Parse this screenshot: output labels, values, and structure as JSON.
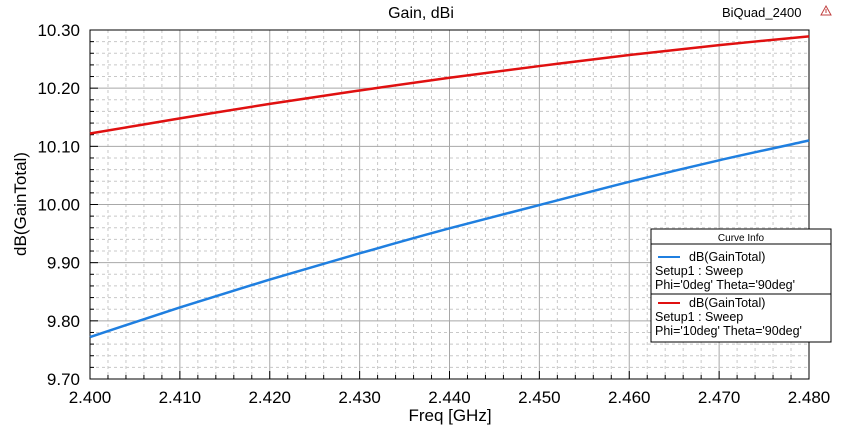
{
  "chart_data": {
    "type": "line",
    "title": "Gain, dBi",
    "project_tag": "BiQuad_2400",
    "xlabel": "Freq [GHz]",
    "ylabel": "dB(GainTotal)",
    "xlim": [
      2.4,
      2.48
    ],
    "ylim": [
      9.7,
      10.3
    ],
    "x_ticks": [
      "2.400",
      "2.410",
      "2.420",
      "2.430",
      "2.440",
      "2.450",
      "2.460",
      "2.470",
      "2.480"
    ],
    "y_ticks": [
      "9.70",
      "9.80",
      "9.90",
      "10.00",
      "10.10",
      "10.20",
      "10.30"
    ],
    "grid": true,
    "legend": {
      "title": "Curve Info",
      "placement": "right",
      "entries": [
        {
          "name": "dB(GainTotal)",
          "line2": "Setup1 : Sweep",
          "line3": "Phi='0deg' Theta='90deg'"
        },
        {
          "name": "dB(GainTotal)",
          "line2": "Setup1 : Sweep",
          "line3": "Phi='10deg' Theta='90deg'"
        }
      ]
    },
    "x": [
      2.4,
      2.41,
      2.42,
      2.43,
      2.44,
      2.45,
      2.46,
      2.47,
      2.48
    ],
    "series": [
      {
        "name": "dB(GainTotal) Phi='0deg' Theta='90deg'",
        "color": "#1f7fe0",
        "values": [
          9.772,
          9.823,
          9.871,
          9.916,
          9.959,
          9.999,
          10.039,
          10.076,
          10.11
        ]
      },
      {
        "name": "dB(GainTotal) Phi='10deg' Theta='90deg'",
        "color": "#e01010",
        "values": [
          10.122,
          10.148,
          10.173,
          10.196,
          10.218,
          10.238,
          10.257,
          10.274,
          10.289
        ]
      }
    ]
  }
}
